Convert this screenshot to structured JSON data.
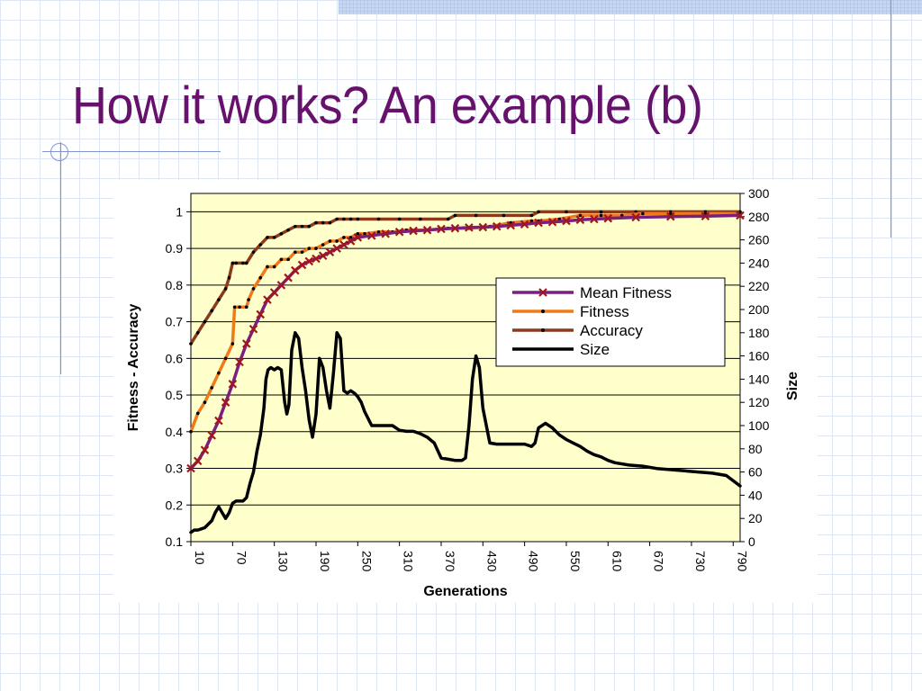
{
  "slide": {
    "title": "How it works? An example (b)"
  },
  "chart_data": {
    "type": "line",
    "xlabel": "Generations",
    "ylabel_left": "Fitness - Accuracy",
    "ylabel_right": "Size",
    "x_ticks": [
      "10",
      "70",
      "130",
      "190",
      "250",
      "310",
      "370",
      "430",
      "490",
      "550",
      "610",
      "670",
      "730",
      "790"
    ],
    "xlim": [
      10,
      800
    ],
    "ylim_left": [
      0.1,
      1.05
    ],
    "yticks_left": [
      "0.1",
      "0.2",
      "0.3",
      "0.4",
      "0.5",
      "0.6",
      "0.7",
      "0.8",
      "0.9",
      "1"
    ],
    "ylim_right": [
      0,
      300
    ],
    "yticks_right": [
      "0",
      "20",
      "40",
      "60",
      "80",
      "100",
      "120",
      "140",
      "160",
      "180",
      "200",
      "220",
      "240",
      "260",
      "280",
      "300"
    ],
    "grid": "horizontal",
    "plot_background": "#ffffcc",
    "legend_position": "center-right",
    "series": [
      {
        "name": "Mean Fitness",
        "axis": "left",
        "color": "#7b1f7e",
        "marker": "x",
        "x": [
          10,
          20,
          30,
          40,
          50,
          60,
          70,
          80,
          90,
          100,
          110,
          120,
          130,
          140,
          150,
          160,
          170,
          180,
          190,
          200,
          210,
          220,
          230,
          240,
          250,
          270,
          290,
          310,
          330,
          350,
          370,
          390,
          410,
          430,
          450,
          470,
          490,
          510,
          530,
          550,
          570,
          590,
          610,
          650,
          700,
          750,
          800
        ],
        "values": [
          0.3,
          0.32,
          0.35,
          0.39,
          0.43,
          0.48,
          0.53,
          0.59,
          0.64,
          0.68,
          0.72,
          0.76,
          0.78,
          0.8,
          0.82,
          0.84,
          0.855,
          0.865,
          0.872,
          0.88,
          0.89,
          0.9,
          0.91,
          0.92,
          0.93,
          0.935,
          0.94,
          0.945,
          0.948,
          0.95,
          0.953,
          0.955,
          0.957,
          0.958,
          0.96,
          0.963,
          0.966,
          0.97,
          0.972,
          0.975,
          0.978,
          0.98,
          0.982,
          0.985,
          0.987,
          0.988,
          0.99
        ]
      },
      {
        "name": "Fitness",
        "axis": "left",
        "color": "#f07a1a",
        "marker": "dot",
        "x": [
          10,
          20,
          30,
          40,
          50,
          60,
          70,
          73,
          80,
          90,
          93,
          100,
          110,
          120,
          130,
          140,
          150,
          160,
          170,
          180,
          190,
          200,
          210,
          220,
          230,
          240,
          250,
          260,
          280,
          300,
          320,
          350,
          380,
          410,
          440,
          470,
          500,
          510,
          540,
          570,
          600,
          630,
          660,
          700,
          750,
          800
        ],
        "values": [
          0.4,
          0.45,
          0.48,
          0.52,
          0.56,
          0.6,
          0.64,
          0.74,
          0.74,
          0.74,
          0.76,
          0.79,
          0.82,
          0.85,
          0.85,
          0.87,
          0.87,
          0.89,
          0.89,
          0.9,
          0.9,
          0.91,
          0.92,
          0.92,
          0.93,
          0.93,
          0.94,
          0.94,
          0.945,
          0.945,
          0.95,
          0.95,
          0.955,
          0.955,
          0.96,
          0.97,
          0.975,
          0.975,
          0.98,
          0.99,
          0.99,
          0.99,
          0.995,
          0.995,
          0.995,
          0.995
        ]
      },
      {
        "name": "Accuracy",
        "axis": "left",
        "color": "#8b3a1a",
        "marker": "dot",
        "x": [
          10,
          20,
          30,
          40,
          50,
          60,
          65,
          70,
          75,
          85,
          90,
          100,
          110,
          120,
          130,
          140,
          150,
          160,
          170,
          180,
          190,
          200,
          210,
          220,
          230,
          240,
          250,
          280,
          310,
          340,
          380,
          390,
          420,
          460,
          500,
          510,
          550,
          600,
          650,
          700,
          750,
          800
        ],
        "values": [
          0.64,
          0.67,
          0.7,
          0.73,
          0.76,
          0.79,
          0.82,
          0.86,
          0.86,
          0.86,
          0.86,
          0.89,
          0.91,
          0.93,
          0.93,
          0.94,
          0.95,
          0.96,
          0.96,
          0.96,
          0.97,
          0.97,
          0.97,
          0.98,
          0.98,
          0.98,
          0.98,
          0.98,
          0.98,
          0.98,
          0.98,
          0.99,
          0.99,
          0.99,
          0.99,
          1.0,
          1.0,
          1.0,
          1.0,
          1.0,
          1.0,
          1.0
        ]
      },
      {
        "name": "Size",
        "axis": "right",
        "color": "#000000",
        "marker": "none",
        "x": [
          10,
          15,
          20,
          25,
          30,
          35,
          40,
          45,
          50,
          55,
          60,
          65,
          70,
          75,
          80,
          85,
          90,
          95,
          100,
          105,
          110,
          115,
          118,
          121,
          125,
          130,
          135,
          140,
          145,
          148,
          151,
          155,
          160,
          165,
          170,
          175,
          180,
          185,
          190,
          195,
          200,
          205,
          210,
          215,
          220,
          225,
          230,
          235,
          240,
          245,
          250,
          255,
          260,
          270,
          280,
          290,
          300,
          310,
          320,
          330,
          340,
          350,
          360,
          370,
          380,
          390,
          400,
          405,
          410,
          415,
          420,
          425,
          430,
          440,
          450,
          460,
          470,
          480,
          490,
          500,
          505,
          510,
          520,
          530,
          540,
          550,
          560,
          570,
          580,
          590,
          600,
          610,
          620,
          640,
          660,
          680,
          700,
          720,
          740,
          760,
          780,
          800
        ],
        "values": [
          8,
          10,
          10,
          11,
          12,
          15,
          18,
          25,
          30,
          25,
          20,
          25,
          33,
          35,
          35,
          35,
          38,
          50,
          60,
          78,
          92,
          115,
          140,
          148,
          150,
          148,
          150,
          148,
          120,
          110,
          118,
          165,
          180,
          175,
          150,
          130,
          105,
          90,
          110,
          158,
          150,
          130,
          115,
          145,
          180,
          175,
          130,
          128,
          130,
          128,
          125,
          120,
          112,
          100,
          100,
          100,
          100,
          96,
          95,
          95,
          93,
          90,
          85,
          72,
          71,
          70,
          70,
          72,
          100,
          140,
          160,
          150,
          115,
          85,
          84,
          84,
          84,
          84,
          84,
          82,
          85,
          98,
          102,
          98,
          92,
          88,
          85,
          82,
          78,
          75,
          73,
          70,
          68,
          66,
          65,
          63,
          62,
          61,
          60,
          59,
          57,
          48
        ]
      }
    ]
  }
}
